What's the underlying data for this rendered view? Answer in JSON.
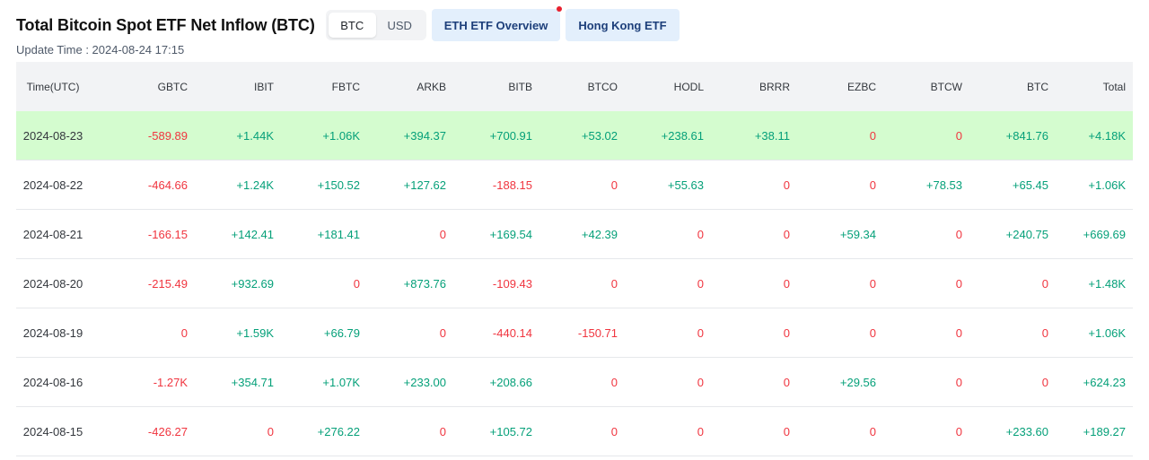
{
  "header": {
    "title": "Total Bitcoin Spot ETF Net Inflow (BTC)",
    "units": [
      {
        "label": "BTC",
        "active": true
      },
      {
        "label": "USD",
        "active": false
      }
    ],
    "eth_overview_label": "ETH ETF Overview",
    "hong_kong_label": "Hong Kong ETF"
  },
  "update_time": "Update Time : 2024-08-24 17:15",
  "table": {
    "columns": [
      "Time(UTC)",
      "GBTC",
      "IBIT",
      "FBTC",
      "ARKB",
      "BITB",
      "BTCO",
      "HODL",
      "BRRR",
      "EZBC",
      "BTCW",
      "BTC",
      "Total"
    ],
    "rows": [
      {
        "highlight": true,
        "cells": [
          "2024-08-23",
          "-589.89",
          "+1.44K",
          "+1.06K",
          "+394.37",
          "+700.91",
          "+53.02",
          "+238.61",
          "+38.11",
          "0",
          "0",
          "+841.76",
          "+4.18K"
        ]
      },
      {
        "highlight": false,
        "cells": [
          "2024-08-22",
          "-464.66",
          "+1.24K",
          "+150.52",
          "+127.62",
          "-188.15",
          "0",
          "+55.63",
          "0",
          "0",
          "+78.53",
          "+65.45",
          "+1.06K"
        ]
      },
      {
        "highlight": false,
        "cells": [
          "2024-08-21",
          "-166.15",
          "+142.41",
          "+181.41",
          "0",
          "+169.54",
          "+42.39",
          "0",
          "0",
          "+59.34",
          "0",
          "+240.75",
          "+669.69"
        ]
      },
      {
        "highlight": false,
        "cells": [
          "2024-08-20",
          "-215.49",
          "+932.69",
          "0",
          "+873.76",
          "-109.43",
          "0",
          "0",
          "0",
          "0",
          "0",
          "0",
          "+1.48K"
        ]
      },
      {
        "highlight": false,
        "cells": [
          "2024-08-19",
          "0",
          "+1.59K",
          "+66.79",
          "0",
          "-440.14",
          "-150.71",
          "0",
          "0",
          "0",
          "0",
          "0",
          "+1.06K"
        ]
      },
      {
        "highlight": false,
        "cells": [
          "2024-08-16",
          "-1.27K",
          "+354.71",
          "+1.07K",
          "+233.00",
          "+208.66",
          "0",
          "0",
          "0",
          "+29.56",
          "0",
          "0",
          "+624.23"
        ]
      },
      {
        "highlight": false,
        "cells": [
          "2024-08-15",
          "-426.27",
          "0",
          "+276.22",
          "0",
          "+105.72",
          "0",
          "0",
          "0",
          "0",
          "0",
          "+233.60",
          "+189.27"
        ]
      }
    ]
  },
  "colors": {
    "positive": "#05a079",
    "negative": "#f0353f",
    "highlight_row": "#d4fccf",
    "header_bg": "#f2f3f5",
    "accent_button": "#e3effc"
  }
}
